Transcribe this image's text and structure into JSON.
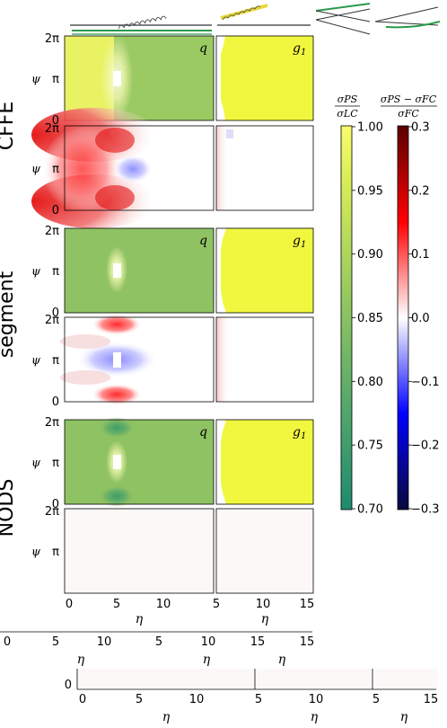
{
  "row_labels": [
    "CFFE",
    "segment",
    "NODS"
  ],
  "panel_tags": {
    "q": "q",
    "g1_base": "g",
    "g1_sub": "1"
  },
  "y_axis": {
    "symbol": "ψ",
    "ticks": [
      "0",
      "π",
      "2π"
    ]
  },
  "x_axis": {
    "symbol": "η",
    "ticks_left": [
      "0",
      "5",
      "10"
    ],
    "ticks_right": [
      "5",
      "10",
      "15"
    ]
  },
  "strip_ticks_top": [
    "0",
    "5",
    "10",
    "5",
    "10",
    "15"
  ],
  "strip_ticks_bottom": [
    "0",
    "5",
    "10",
    "5",
    "10",
    "15"
  ],
  "strip_y_tick": "0",
  "colorbar_ratio": {
    "label_num": "σPS",
    "label_den": "σLC",
    "range": [
      0.7,
      1.0
    ],
    "ticks": [
      "1.00",
      "0.95",
      "0.90",
      "0.85",
      "0.80",
      "0.75",
      "0.70"
    ],
    "colors": [
      "#1f8a6e",
      "#5bab6a",
      "#9fcd5e",
      "#d7ec58",
      "#fafc6c"
    ]
  },
  "colorbar_diff": {
    "label_num": "σPS − σFC",
    "label_den": "σFC",
    "range": [
      -0.3,
      0.3
    ],
    "ticks": [
      "0.3",
      "0.2",
      "0.1",
      "0.0",
      "−0.1",
      "−0.2",
      "−0.3"
    ],
    "colors": [
      "#0a0a3c",
      "#0000ff",
      "#ffffff",
      "#ff0000",
      "#5a0000"
    ]
  },
  "chart_data": [
    {
      "type": "heatmap",
      "row": "CFFE",
      "panel": "q",
      "kind": "ratio",
      "value": 0.93,
      "note_region": "η<5 ≈0.98"
    },
    {
      "type": "heatmap",
      "row": "CFFE",
      "panel": "g1",
      "kind": "ratio",
      "value": 0.98
    },
    {
      "type": "heatmap",
      "row": "CFFE",
      "panel": "q",
      "kind": "difference",
      "range": [
        -0.05,
        0.25
      ]
    },
    {
      "type": "heatmap",
      "row": "CFFE",
      "panel": "g1",
      "kind": "difference",
      "range": [
        0.0,
        0.02
      ]
    },
    {
      "type": "heatmap",
      "row": "segment",
      "panel": "q",
      "kind": "ratio",
      "value": 0.89
    },
    {
      "type": "heatmap",
      "row": "segment",
      "panel": "g1",
      "kind": "ratio",
      "value": 0.98
    },
    {
      "type": "heatmap",
      "row": "segment",
      "panel": "q",
      "kind": "difference",
      "range": [
        -0.1,
        0.12
      ]
    },
    {
      "type": "heatmap",
      "row": "segment",
      "panel": "g1",
      "kind": "difference",
      "range": [
        0.0,
        0.03
      ]
    },
    {
      "type": "heatmap",
      "row": "NODS",
      "panel": "q",
      "kind": "ratio",
      "value": 0.89,
      "min": 0.81
    },
    {
      "type": "heatmap",
      "row": "NODS",
      "panel": "g1",
      "kind": "ratio",
      "value": 0.98
    },
    {
      "type": "heatmap",
      "row": "NODS",
      "panel": "q",
      "kind": "difference",
      "value": 0.0
    },
    {
      "type": "heatmap",
      "row": "NODS",
      "panel": "g1",
      "kind": "difference",
      "value": 0.0
    }
  ]
}
